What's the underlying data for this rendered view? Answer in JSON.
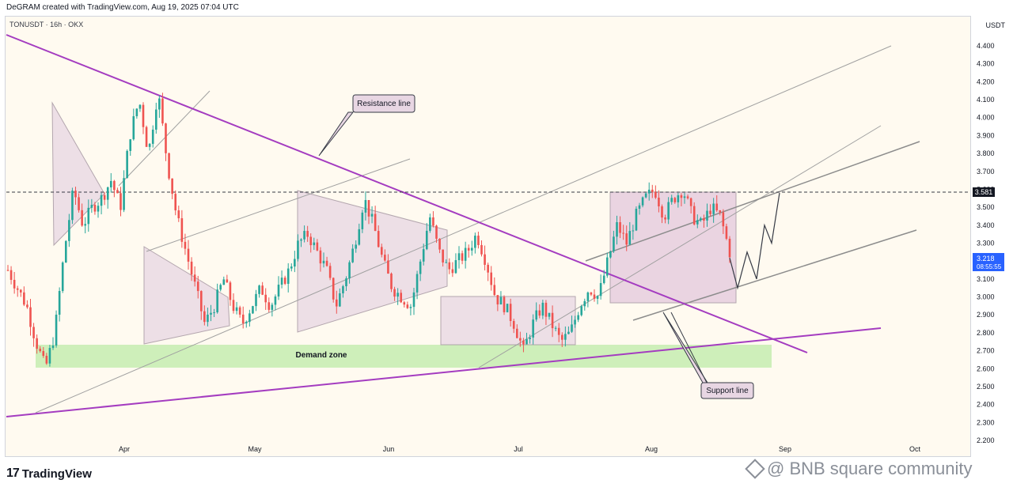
{
  "header": {
    "caption": "DeGRAM created with TradingView.com, Aug 19, 2025 07:04 UTC"
  },
  "symbol_label": "TONUSDT · 16h · OKX",
  "footer": {
    "logo_mark": "17",
    "logo_text": "TradingView",
    "watermark": "@ BNB square community"
  },
  "colors": {
    "up": "#26a69a",
    "down": "#ef5350",
    "trendline": "#a43cc0",
    "demand": "#c5ecb0",
    "pattern": "#e8d6e3",
    "channel": "#a0a0a0",
    "projection": "#363a45",
    "current_price_bg": "#2962ff"
  },
  "chart_data": {
    "type": "candlestick",
    "symbol": "TONUSDT",
    "interval": "16h",
    "exchange": "OKX",
    "currency": "USDT",
    "ylim": [
      2.2,
      4.5
    ],
    "yticks": [
      "4.400",
      "4.300",
      "4.200",
      "4.100",
      "4.000",
      "3.900",
      "3.800",
      "3.700",
      "3.600",
      "3.500",
      "3.400",
      "3.300",
      "3.200",
      "3.100",
      "3.000",
      "2.900",
      "2.800",
      "2.700",
      "2.600",
      "2.500",
      "2.400",
      "2.300",
      "2.200"
    ],
    "xticks": [
      "Apr",
      "May",
      "Jun",
      "Jul",
      "Aug",
      "Sep",
      "Oct"
    ],
    "last_price": "3.218",
    "countdown": "08:55:55",
    "marked_level": "3.581",
    "annotations": [
      {
        "text": "Resistance line"
      },
      {
        "text": "Demand zone"
      },
      {
        "text": "Support line"
      }
    ],
    "close_path": [
      3.15,
      3.05,
      2.95,
      2.75,
      2.6,
      2.8,
      3.25,
      3.6,
      3.4,
      3.5,
      3.55,
      3.65,
      3.5,
      3.9,
      4.1,
      3.8,
      4.15,
      3.75,
      3.45,
      3.25,
      3.05,
      2.85,
      2.95,
      3.1,
      2.95,
      2.85,
      2.95,
      3.05,
      2.95,
      3.05,
      3.15,
      3.3,
      3.35,
      3.25,
      3.15,
      2.95,
      3.1,
      3.3,
      3.55,
      3.4,
      3.2,
      3.05,
      3.0,
      2.95,
      3.2,
      3.45,
      3.25,
      3.15,
      3.2,
      3.25,
      3.35,
      3.2,
      3.0,
      2.95,
      2.85,
      2.7,
      2.85,
      2.95,
      2.85,
      2.75,
      2.8,
      2.95,
      3.05,
      3.0,
      3.2,
      3.4,
      3.3,
      3.45,
      3.55,
      3.6,
      3.45,
      3.55,
      3.6,
      3.45,
      3.4,
      3.5,
      3.45,
      3.25
    ],
    "projection": [
      3.218,
      3.05,
      3.25,
      3.1,
      3.4,
      3.3,
      3.58
    ]
  }
}
